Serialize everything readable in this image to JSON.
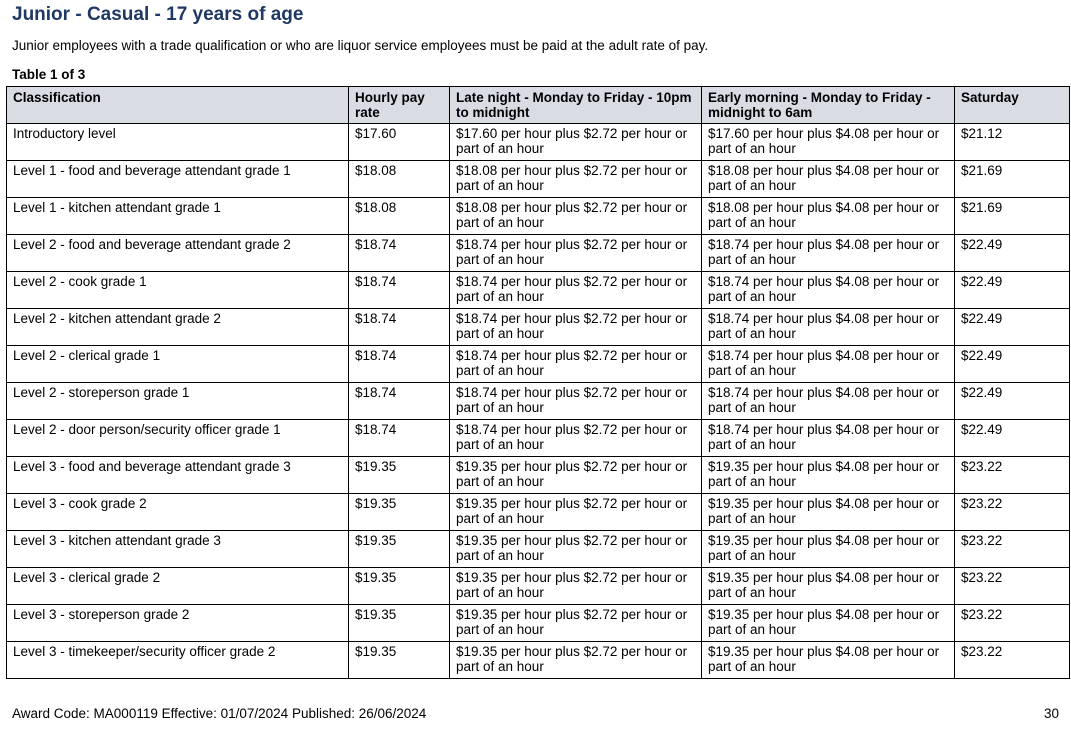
{
  "heading": "Junior - Casual - 17 years of age",
  "intro": "Junior employees with a trade qualification or who are liquor service employees must be paid at the adult rate of pay.",
  "table_label": "Table 1 of 3",
  "columns": [
    "Classification",
    "Hourly pay rate",
    "Late night - Monday to Friday - 10pm to midnight",
    "Early morning - Monday to Friday - midnight to 6am",
    "Saturday"
  ],
  "rows": [
    [
      "Introductory level",
      "$17.60",
      "$17.60 per hour plus $2.72 per hour or part of an hour",
      "$17.60 per hour plus $4.08 per hour or part of an hour",
      "$21.12"
    ],
    [
      "Level 1 - food and beverage attendant grade 1",
      "$18.08",
      "$18.08 per hour plus $2.72 per hour or part of an hour",
      "$18.08 per hour plus $4.08 per hour or part of an hour",
      "$21.69"
    ],
    [
      "Level 1 - kitchen attendant grade 1",
      "$18.08",
      "$18.08 per hour plus $2.72 per hour or part of an hour",
      "$18.08 per hour plus $4.08 per hour or part of an hour",
      "$21.69"
    ],
    [
      "Level 2 - food and beverage attendant grade 2",
      "$18.74",
      "$18.74 per hour plus $2.72 per hour or part of an hour",
      "$18.74 per hour plus $4.08 per hour or part of an hour",
      "$22.49"
    ],
    [
      "Level 2 - cook grade 1",
      "$18.74",
      "$18.74 per hour plus $2.72 per hour or part of an hour",
      "$18.74 per hour plus $4.08 per hour or part of an hour",
      "$22.49"
    ],
    [
      "Level 2 - kitchen attendant grade 2",
      "$18.74",
      "$18.74 per hour plus $2.72 per hour or part of an hour",
      "$18.74 per hour plus $4.08 per hour or part of an hour",
      "$22.49"
    ],
    [
      "Level 2 - clerical grade 1",
      "$18.74",
      "$18.74 per hour plus $2.72 per hour or part of an hour",
      "$18.74 per hour plus $4.08 per hour or part of an hour",
      "$22.49"
    ],
    [
      "Level 2 - storeperson grade 1",
      "$18.74",
      "$18.74 per hour plus $2.72 per hour or part of an hour",
      "$18.74 per hour plus $4.08 per hour or part of an hour",
      "$22.49"
    ],
    [
      "Level 2 - door person/security officer grade 1",
      "$18.74",
      "$18.74 per hour plus $2.72 per hour or part of an hour",
      "$18.74 per hour plus $4.08 per hour or part of an hour",
      "$22.49"
    ],
    [
      "Level 3 - food and beverage attendant grade 3",
      "$19.35",
      "$19.35 per hour plus $2.72 per hour or part of an hour",
      "$19.35 per hour plus $4.08 per hour or part of an hour",
      "$23.22"
    ],
    [
      "Level 3 - cook grade 2",
      "$19.35",
      "$19.35 per hour plus $2.72 per hour or part of an hour",
      "$19.35 per hour plus $4.08 per hour or part of an hour",
      "$23.22"
    ],
    [
      "Level 3 - kitchen attendant grade 3",
      "$19.35",
      "$19.35 per hour plus $2.72 per hour or part of an hour",
      "$19.35 per hour plus $4.08 per hour or part of an hour",
      "$23.22"
    ],
    [
      "Level 3 - clerical grade 2",
      "$19.35",
      "$19.35 per hour plus $2.72 per hour or part of an hour",
      "$19.35 per hour plus $4.08 per hour or part of an hour",
      "$23.22"
    ],
    [
      "Level 3 - storeperson grade 2",
      "$19.35",
      "$19.35 per hour plus $2.72 per hour or part of an hour",
      "$19.35 per hour plus $4.08 per hour or part of an hour",
      "$23.22"
    ],
    [
      "Level 3 - timekeeper/security officer grade 2",
      "$19.35",
      "$19.35 per hour plus $2.72 per hour or part of an hour",
      "$19.35 per hour plus $4.08 per hour or part of an hour",
      "$23.22"
    ]
  ],
  "footer": {
    "award_info": "Award Code: MA000119  Effective: 01/07/2024  Published: 26/06/2024",
    "page_number": "30"
  },
  "colors": {
    "heading": "#1f3864",
    "header_bg": "#d9dde3"
  }
}
